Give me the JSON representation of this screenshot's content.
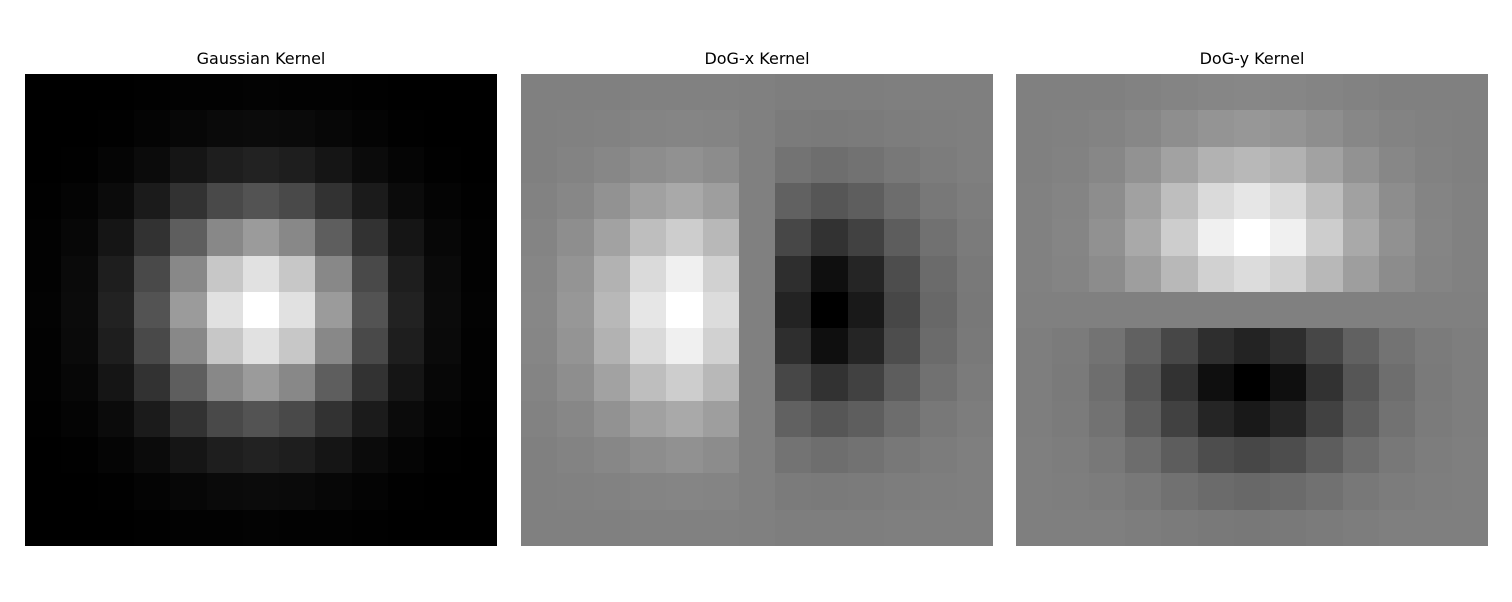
{
  "chart_data": [
    {
      "type": "heatmap",
      "title": "Gaussian Kernel",
      "colormap": "gray",
      "axes_visible": false,
      "size": 13,
      "kernel": "gaussian",
      "sigma": 2.0
    },
    {
      "type": "heatmap",
      "title": "DoG-x Kernel",
      "colormap": "gray",
      "axes_visible": false,
      "size": 13,
      "kernel": "dog-x",
      "sigma": 2.0
    },
    {
      "type": "heatmap",
      "title": "DoG-y Kernel",
      "colormap": "gray",
      "axes_visible": false,
      "size": 13,
      "kernel": "dog-y",
      "sigma": 2.0
    }
  ]
}
